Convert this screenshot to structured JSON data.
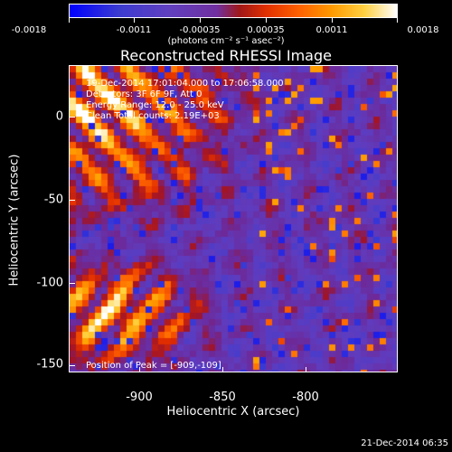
{
  "colorbar": {
    "ticks": [
      "-0.0018",
      "-0.0011",
      "-0.00035",
      "0.00035",
      "0.0011",
      "0.0018"
    ],
    "unit": "(photons cm⁻² s⁻¹ asec⁻²)"
  },
  "title": "Reconstructed RHESSI Image",
  "info_lines": [
    "19-Dec-2014 17:01:04.000 to 17:06:58.000",
    "Detectors: 3F 6F 9F, Att 0",
    "Energy Range: 12.0 - 25.0 keV",
    "Clean    Total counts: 2.19E+03"
  ],
  "peak_text": "Position of Peak = [-909,-109]",
  "axes": {
    "xlabel": "Heliocentric X (arcsec)",
    "ylabel": "Heliocentric Y (arcsec)",
    "xticks": [
      "-900",
      "-850",
      "-800"
    ],
    "yticks": [
      "0",
      "-50",
      "-100",
      "-150"
    ]
  },
  "timestamp": "21-Dec-2014 06:35",
  "chart_data": {
    "type": "heatmap",
    "title": "Reconstructed RHESSI Image",
    "xlabel": "Heliocentric X (arcsec)",
    "ylabel": "Heliocentric Y (arcsec)",
    "xlim": [
      -944,
      -845
    ],
    "ylim": [
      -160,
      15
    ],
    "value_range": [
      -0.0018,
      0.0018
    ],
    "peak": [
      -909,
      -109
    ]
  }
}
